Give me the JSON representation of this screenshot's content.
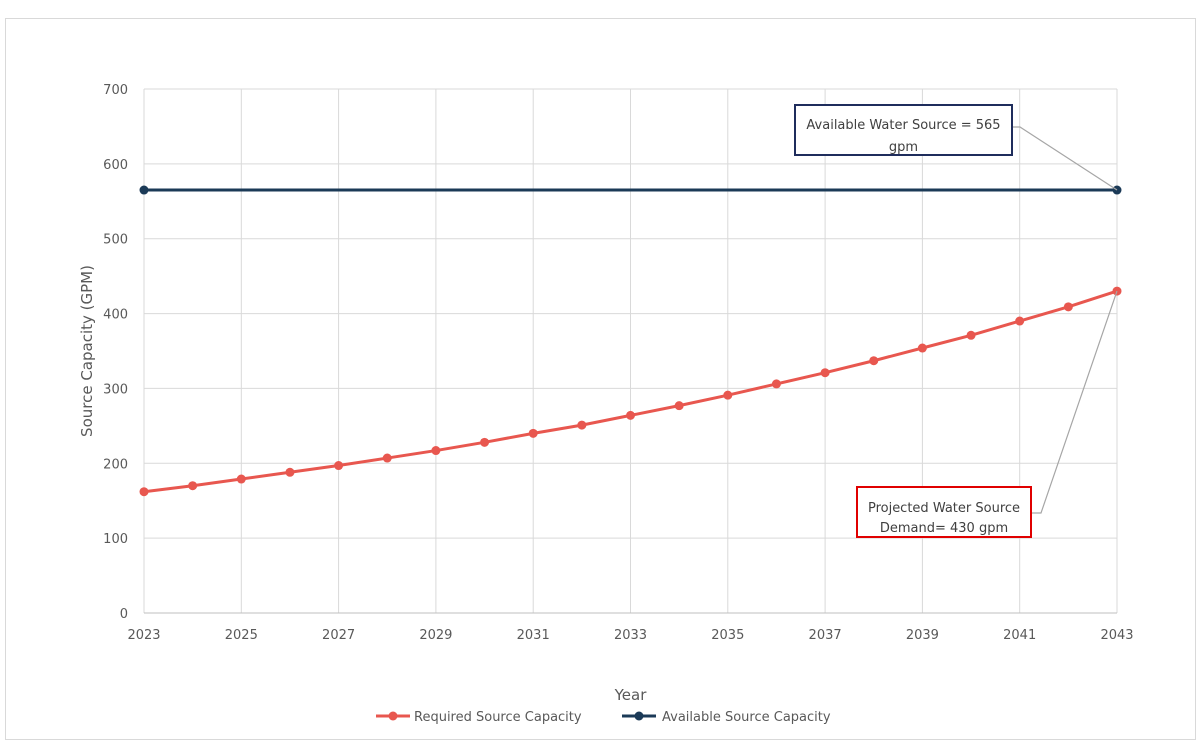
{
  "page_title": "",
  "chart_data": {
    "type": "line",
    "title": "",
    "xlabel": "Year",
    "ylabel": "Source Capacity (GPM)",
    "xlim": [
      2023,
      2043
    ],
    "ylim": [
      0,
      700
    ],
    "y_ticks": [
      0,
      100,
      200,
      300,
      400,
      500,
      600,
      700
    ],
    "x_ticks": [
      2023,
      2025,
      2027,
      2029,
      2031,
      2033,
      2035,
      2037,
      2039,
      2041,
      2043
    ],
    "grid": true,
    "legend_position": "bottom",
    "x": [
      2023,
      2024,
      2025,
      2026,
      2027,
      2028,
      2029,
      2030,
      2031,
      2032,
      2033,
      2034,
      2035,
      2036,
      2037,
      2038,
      2039,
      2040,
      2041,
      2042,
      2043
    ],
    "series": [
      {
        "name": "Required Source Capacity",
        "color": "#e8574f",
        "values": [
          162,
          170,
          179,
          188,
          197,
          207,
          217,
          228,
          240,
          251,
          264,
          277,
          291,
          306,
          321,
          337,
          354,
          371,
          390,
          409,
          430
        ]
      },
      {
        "name": "Available Source Capacity",
        "color": "#1b3a57",
        "x": [
          2023,
          2043
        ],
        "values": [
          565,
          565
        ]
      }
    ],
    "annotations": [
      {
        "lines": [
          "Available Water Source = 565",
          "gpm"
        ],
        "x": 2043,
        "y": 565,
        "border_color": "#1f2d5c"
      },
      {
        "lines": [
          "Projected Water Source",
          "Demand= 430 gpm"
        ],
        "x": 2043,
        "y": 430,
        "border_color": "#e00000"
      }
    ]
  }
}
